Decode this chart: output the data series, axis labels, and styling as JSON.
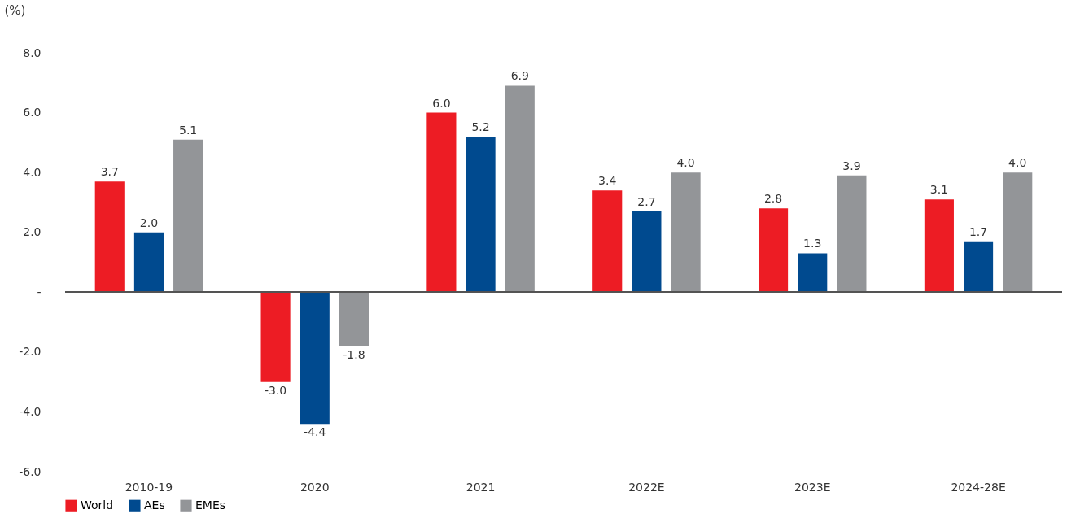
{
  "chart_data": {
    "type": "bar",
    "ylabel": "(%)",
    "categories": [
      "2010-19",
      "2020",
      "2021",
      "2022E",
      "2023E",
      "2024-28E"
    ],
    "series": [
      {
        "name": "World",
        "color": "#ed1c24",
        "values": [
          3.7,
          -3.0,
          6.0,
          3.4,
          2.8,
          3.1
        ],
        "value_labels": [
          "3.7",
          "-3.0",
          "6.0",
          "3.4",
          "2.8",
          "3.1"
        ]
      },
      {
        "name": "AEs",
        "color": "#004a8f",
        "values": [
          2.0,
          -4.4,
          5.2,
          2.7,
          1.3,
          1.7
        ],
        "value_labels": [
          "2.0",
          "-4.4",
          "5.2",
          "2.7",
          "1.3",
          "1.7"
        ]
      },
      {
        "name": "EMEs",
        "color": "#939598",
        "values": [
          5.1,
          -1.8,
          6.9,
          4.0,
          3.9,
          4.0
        ],
        "value_labels": [
          "5.1",
          "-1.8",
          "6.9",
          "4.0",
          "3.9",
          "4.0"
        ]
      }
    ],
    "ylim": [
      -6,
      8
    ],
    "yticks": [
      {
        "value": -6,
        "label": "-6.0"
      },
      {
        "value": -4,
        "label": "-4.0"
      },
      {
        "value": -2,
        "label": "-2.0"
      },
      {
        "value": 0,
        "label": "-"
      },
      {
        "value": 2,
        "label": "2.0"
      },
      {
        "value": 4,
        "label": "4.0"
      },
      {
        "value": 6,
        "label": "6.0"
      },
      {
        "value": 8,
        "label": "8.0"
      }
    ],
    "legend": "bottom left"
  }
}
